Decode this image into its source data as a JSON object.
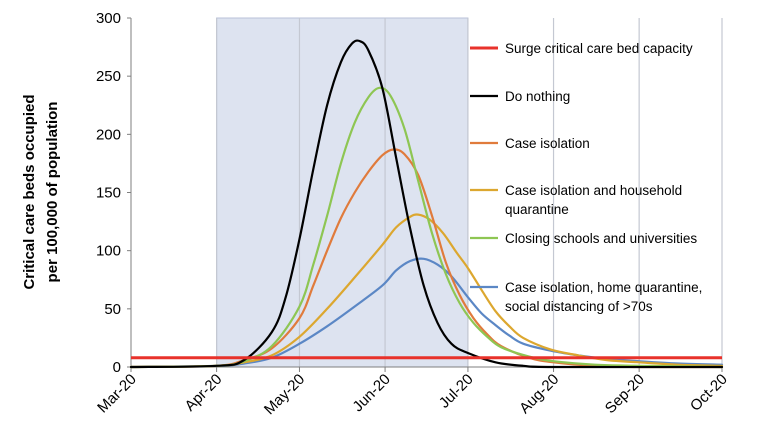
{
  "chart_data": {
    "type": "line",
    "title": "",
    "xlabel": "",
    "ylabel": "Critical care beds occupied per 100,000 of population",
    "ylabel_lines": [
      "Critical care beds occupied",
      "per 100,000 of population"
    ],
    "x_ticks": [
      "Mar-20",
      "Apr-20",
      "May-20",
      "Jun-20",
      "Jul-20",
      "Aug-20",
      "Sep-20",
      "Oct-20"
    ],
    "x_range": [
      "2020-03-01",
      "2020-10-01"
    ],
    "y_ticks": [
      "0",
      "50",
      "100",
      "150",
      "200",
      "250",
      "300"
    ],
    "ylim": [
      0,
      300
    ],
    "grid": "vertical lines at month ticks",
    "shaded_period": {
      "start": "2020-04-01",
      "end": "2020-07-01",
      "color": "#dde3f0"
    },
    "legend_position": "right",
    "capacity_line": {
      "name": "Surge critical care bed capacity",
      "value": 8,
      "color": "#e8322b"
    },
    "series": [
      {
        "name": "Do nothing",
        "color": "#000000",
        "points": [
          [
            "2020-03-01",
            0
          ],
          [
            "2020-04-01",
            1
          ],
          [
            "2020-04-11",
            6
          ],
          [
            "2020-04-21",
            30
          ],
          [
            "2020-04-26",
            60
          ],
          [
            "2020-05-01",
            110
          ],
          [
            "2020-05-06",
            170
          ],
          [
            "2020-05-11",
            225
          ],
          [
            "2020-05-16",
            262
          ],
          [
            "2020-05-20",
            278
          ],
          [
            "2020-05-23",
            280
          ],
          [
            "2020-05-26",
            272
          ],
          [
            "2020-05-31",
            240
          ],
          [
            "2020-06-05",
            180
          ],
          [
            "2020-06-10",
            120
          ],
          [
            "2020-06-15",
            70
          ],
          [
            "2020-06-20",
            38
          ],
          [
            "2020-06-25",
            20
          ],
          [
            "2020-07-01",
            12
          ],
          [
            "2020-07-11",
            4
          ],
          [
            "2020-07-21",
            1
          ],
          [
            "2020-08-01",
            0
          ],
          [
            "2020-10-01",
            0
          ]
        ]
      },
      {
        "name": "Case isolation",
        "color": "#e07b3c",
        "points": [
          [
            "2020-03-01",
            0
          ],
          [
            "2020-04-01",
            1
          ],
          [
            "2020-04-11",
            6
          ],
          [
            "2020-04-21",
            16
          ],
          [
            "2020-05-01",
            42
          ],
          [
            "2020-05-06",
            70
          ],
          [
            "2020-05-11",
            100
          ],
          [
            "2020-05-16",
            128
          ],
          [
            "2020-05-21",
            150
          ],
          [
            "2020-05-26",
            168
          ],
          [
            "2020-05-31",
            182
          ],
          [
            "2020-06-04",
            187
          ],
          [
            "2020-06-08",
            183
          ],
          [
            "2020-06-13",
            165
          ],
          [
            "2020-06-18",
            130
          ],
          [
            "2020-06-23",
            90
          ],
          [
            "2020-06-28",
            62
          ],
          [
            "2020-07-03",
            42
          ],
          [
            "2020-07-08",
            28
          ],
          [
            "2020-07-13",
            18
          ],
          [
            "2020-07-23",
            8
          ],
          [
            "2020-08-01",
            4
          ],
          [
            "2020-08-16",
            1
          ],
          [
            "2020-09-01",
            0
          ],
          [
            "2020-10-01",
            0
          ]
        ]
      },
      {
        "name": "Case isolation and household quarantine",
        "color": "#dca72f",
        "points": [
          [
            "2020-03-01",
            0
          ],
          [
            "2020-04-01",
            1
          ],
          [
            "2020-04-11",
            4
          ],
          [
            "2020-04-21",
            10
          ],
          [
            "2020-05-01",
            26
          ],
          [
            "2020-05-11",
            50
          ],
          [
            "2020-05-21",
            77
          ],
          [
            "2020-05-31",
            105
          ],
          [
            "2020-06-05",
            120
          ],
          [
            "2020-06-10",
            129
          ],
          [
            "2020-06-13",
            131
          ],
          [
            "2020-06-17",
            127
          ],
          [
            "2020-06-22",
            115
          ],
          [
            "2020-06-27",
            98
          ],
          [
            "2020-07-01",
            85
          ],
          [
            "2020-07-06",
            66
          ],
          [
            "2020-07-11",
            48
          ],
          [
            "2020-07-16",
            35
          ],
          [
            "2020-07-21",
            25
          ],
          [
            "2020-07-31",
            15
          ],
          [
            "2020-08-10",
            10
          ],
          [
            "2020-08-20",
            6
          ],
          [
            "2020-09-01",
            4
          ],
          [
            "2020-09-15",
            2
          ],
          [
            "2020-10-01",
            1
          ]
        ]
      },
      {
        "name": "Closing schools and universities",
        "color": "#8ec653",
        "points": [
          [
            "2020-03-01",
            0
          ],
          [
            "2020-04-01",
            1
          ],
          [
            "2020-04-11",
            5
          ],
          [
            "2020-04-21",
            18
          ],
          [
            "2020-05-01",
            52
          ],
          [
            "2020-05-06",
            88
          ],
          [
            "2020-05-11",
            130
          ],
          [
            "2020-05-16",
            175
          ],
          [
            "2020-05-21",
            210
          ],
          [
            "2020-05-26",
            232
          ],
          [
            "2020-05-30",
            240
          ],
          [
            "2020-06-03",
            233
          ],
          [
            "2020-06-08",
            205
          ],
          [
            "2020-06-13",
            160
          ],
          [
            "2020-06-18",
            115
          ],
          [
            "2020-06-23",
            80
          ],
          [
            "2020-06-28",
            55
          ],
          [
            "2020-07-03",
            38
          ],
          [
            "2020-07-08",
            26
          ],
          [
            "2020-07-13",
            17
          ],
          [
            "2020-07-23",
            9
          ],
          [
            "2020-08-01",
            5
          ],
          [
            "2020-08-16",
            2
          ],
          [
            "2020-09-01",
            1
          ],
          [
            "2020-10-01",
            0
          ]
        ]
      },
      {
        "name": "Case isolation, home quarantine, social distancing of >70s",
        "color": "#5b87c5",
        "points": [
          [
            "2020-03-01",
            0
          ],
          [
            "2020-04-01",
            1
          ],
          [
            "2020-04-11",
            3
          ],
          [
            "2020-04-21",
            8
          ],
          [
            "2020-05-01",
            20
          ],
          [
            "2020-05-11",
            35
          ],
          [
            "2020-05-21",
            52
          ],
          [
            "2020-05-31",
            70
          ],
          [
            "2020-06-05",
            83
          ],
          [
            "2020-06-10",
            91
          ],
          [
            "2020-06-15",
            93
          ],
          [
            "2020-06-20",
            88
          ],
          [
            "2020-06-25",
            78
          ],
          [
            "2020-07-01",
            60
          ],
          [
            "2020-07-06",
            46
          ],
          [
            "2020-07-11",
            36
          ],
          [
            "2020-07-16",
            27
          ],
          [
            "2020-07-21",
            20
          ],
          [
            "2020-07-31",
            14
          ],
          [
            "2020-08-10",
            10
          ],
          [
            "2020-08-20",
            7
          ],
          [
            "2020-09-01",
            5
          ],
          [
            "2020-09-15",
            3
          ],
          [
            "2020-10-01",
            2
          ]
        ]
      }
    ]
  }
}
